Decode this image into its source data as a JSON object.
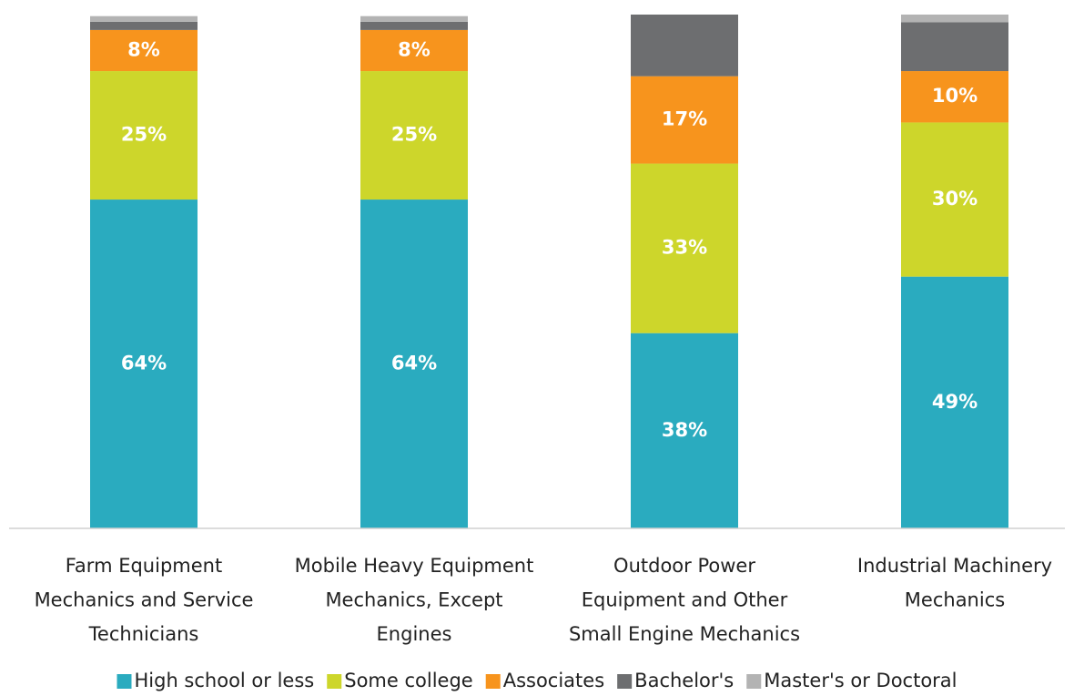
{
  "chart_data": {
    "type": "stacked-bar",
    "categories": [
      "Farm Equipment\nMechanics and Service\nTechnicians",
      "Mobile Heavy Equipment\nMechanics, Except\nEngines",
      "Outdoor Power\nEquipment and Other\nSmall Engine Mechanics",
      "Industrial Machinery\nMechanics"
    ],
    "ylim": [
      0,
      100
    ],
    "series": [
      {
        "name": "High school or less",
        "color": "#2aabbf",
        "values": [
          64,
          64,
          38,
          49
        ],
        "value_labels": [
          "64%",
          "64%",
          "38%",
          "49%"
        ]
      },
      {
        "name": "Some college",
        "color": "#cdd62b",
        "values": [
          25,
          25,
          33,
          30
        ],
        "value_labels": [
          "25%",
          "25%",
          "33%",
          "30%"
        ]
      },
      {
        "name": "Associates",
        "color": "#f7941d",
        "values": [
          8,
          8,
          17,
          10
        ],
        "value_labels": [
          "8%",
          "8%",
          "17%",
          "10%"
        ]
      },
      {
        "name": "Bachelor's",
        "color": "#6d6e70",
        "values": [
          1.6,
          1.6,
          12,
          9.5
        ]
      },
      {
        "name": "Master's or Doctoral",
        "color": "#b3b3b3",
        "values": [
          1.1,
          1.1,
          0,
          1.5
        ]
      }
    ],
    "legend": "bottom"
  }
}
